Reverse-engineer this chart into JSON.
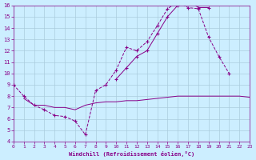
{
  "xlabel": "Windchill (Refroidissement éolien,°C)",
  "bg_color": "#cceeff",
  "grid_color": "#aaccdd",
  "line_color": "#880088",
  "xlim": [
    0,
    23
  ],
  "ylim": [
    4,
    16
  ],
  "xticks": [
    0,
    1,
    2,
    3,
    4,
    5,
    6,
    7,
    8,
    9,
    10,
    11,
    12,
    13,
    14,
    15,
    16,
    17,
    18,
    19,
    20,
    21,
    22,
    23
  ],
  "yticks": [
    4,
    5,
    6,
    7,
    8,
    9,
    10,
    11,
    12,
    13,
    14,
    15,
    16
  ],
  "line1_x": [
    0,
    1,
    2,
    3,
    4,
    5,
    6,
    7,
    8,
    9,
    10,
    11,
    12,
    13,
    14,
    15,
    16,
    17,
    18,
    19,
    20,
    21,
    22
  ],
  "line1_y": [
    9.0,
    8.0,
    7.2,
    6.8,
    6.3,
    6.2,
    5.8,
    4.6,
    8.5,
    9.0,
    10.3,
    12.3,
    12.0,
    12.8,
    14.2,
    15.7,
    16.3,
    15.8,
    15.7,
    13.2,
    11.5,
    10.0,
    null
  ],
  "line2_x": [
    1,
    2,
    3,
    4,
    5,
    6,
    7,
    8,
    9,
    10,
    11,
    12,
    13,
    14,
    15,
    16,
    17,
    18,
    19,
    20,
    21,
    22,
    23
  ],
  "line2_y": [
    7.8,
    7.2,
    7.2,
    7.0,
    7.0,
    6.8,
    7.2,
    7.4,
    7.5,
    7.5,
    7.6,
    7.6,
    7.7,
    7.8,
    7.9,
    8.0,
    8.0,
    8.0,
    8.0,
    8.0,
    8.0,
    8.0,
    7.9
  ],
  "line3_x": [
    0,
    1,
    2,
    3,
    4,
    5,
    6,
    7,
    8,
    9,
    10,
    11,
    12,
    13,
    14,
    15,
    16,
    17,
    18,
    19,
    20,
    21,
    22,
    23
  ],
  "line3_y": [
    9.0,
    null,
    null,
    null,
    null,
    null,
    null,
    null,
    null,
    null,
    9.5,
    10.5,
    11.5,
    12.0,
    13.5,
    15.0,
    16.0,
    16.5,
    15.8,
    15.8,
    null,
    null,
    null,
    null
  ]
}
